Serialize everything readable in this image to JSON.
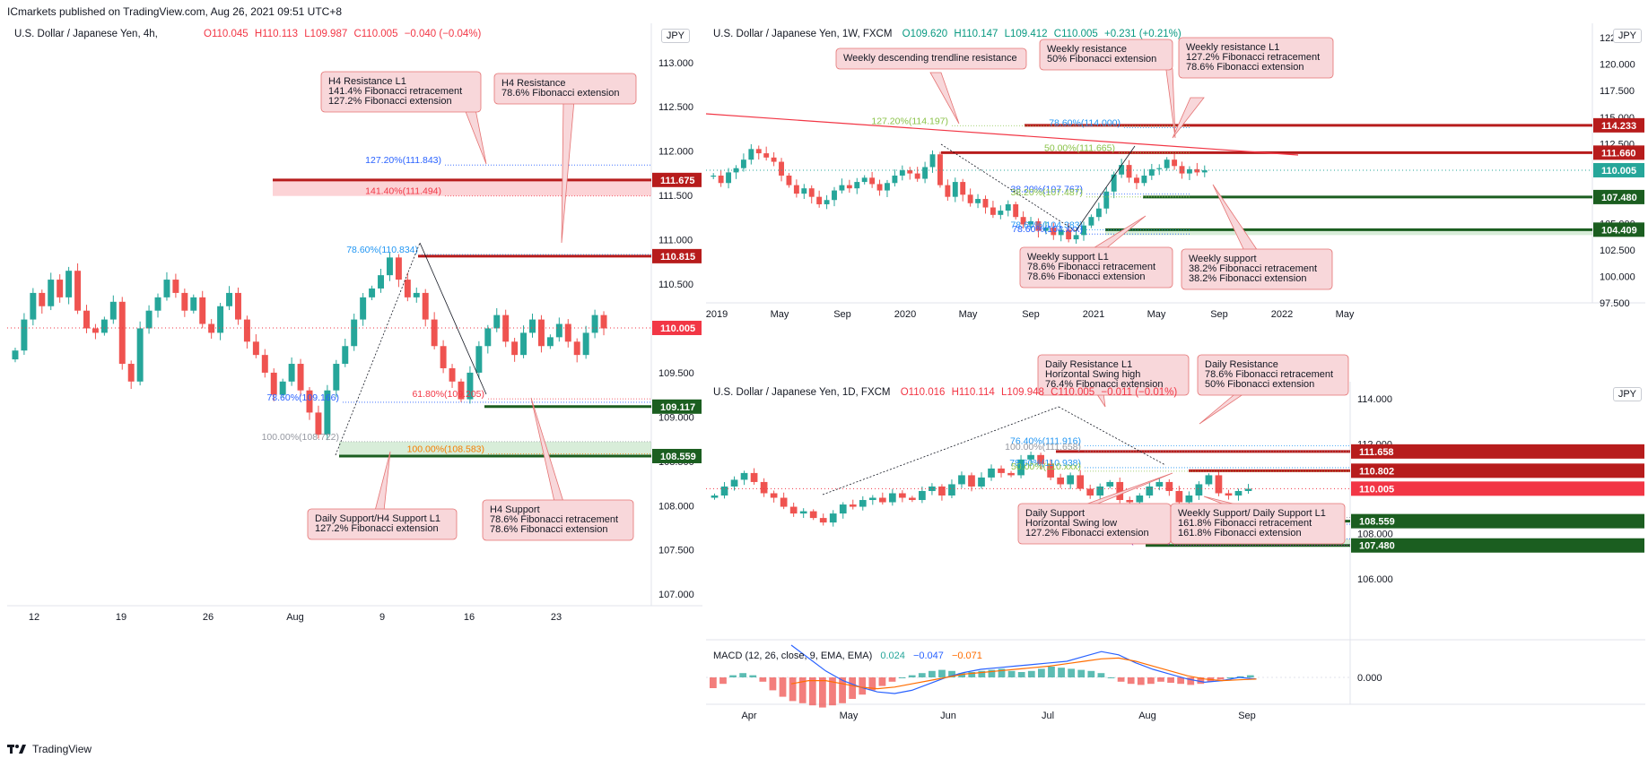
{
  "header": {
    "publisher_line": "ICmarkets published on TradingView.com, Aug 26, 2021 09:51 UTC+8"
  },
  "footer": {
    "brand": "TradingView"
  },
  "panels": {
    "h4": {
      "symbol": "U.S. Dollar / Japanese Yen, 4h,",
      "ohlc": {
        "o": "O110.045",
        "h": "H110.113",
        "l": "L109.987",
        "c": "C110.005",
        "chg": "−0.040 (−0.04%)"
      },
      "currency": "JPY",
      "last_price_tag": "110.005",
      "levels": [
        {
          "label": "111.675",
          "price": 111.675,
          "kind": "resistance"
        },
        {
          "label": "110.815",
          "price": 110.815,
          "kind": "resistance"
        },
        {
          "label": "109.117",
          "price": 109.117,
          "kind": "support"
        },
        {
          "label": "108.559",
          "price": 108.559,
          "kind": "support"
        }
      ],
      "fib_labels": [
        {
          "text": "127.20%(111.843)",
          "price": 111.843,
          "color": "#2962ff"
        },
        {
          "text": "141.40%(111.494)",
          "price": 111.494,
          "color": "#f23645"
        },
        {
          "text": "78.60%(110.834)",
          "price": 110.834,
          "color": "#2196f3"
        },
        {
          "text": "78.60%(109.166)",
          "price": 109.166,
          "color": "#2962ff"
        },
        {
          "text": "61.80%(109.205)",
          "price": 109.205,
          "color": "#f23645"
        },
        {
          "text": "100.00%(108.722)",
          "price": 108.722,
          "color": "#9598a1"
        },
        {
          "text": "100.00%(108.583)",
          "price": 108.583,
          "color": "#f57c00"
        }
      ],
      "callouts": [
        {
          "lines": [
            "H4 Resistance L1",
            "141.4% Fibonacci retracement",
            "127.2% Fibonacci extension"
          ]
        },
        {
          "lines": [
            "H4 Resistance",
            "78.6% Fibonacci extension"
          ]
        },
        {
          "lines": [
            "Daily Support/H4 Support L1",
            "127.2% Fibonacci extension"
          ]
        },
        {
          "lines": [
            "H4 Support",
            "78.6% Fibonacci retracement",
            "78.6% Fibonacci extension"
          ]
        }
      ],
      "y_ticks": [
        "113.000",
        "112.500",
        "112.000",
        "111.500",
        "111.000",
        "110.500",
        "110.000",
        "109.500",
        "109.000",
        "108.500",
        "108.000",
        "107.500",
        "107.000"
      ],
      "x_ticks": [
        "12",
        "19",
        "26",
        "Aug",
        "9",
        "16",
        "23"
      ]
    },
    "w1": {
      "symbol": "U.S. Dollar / Japanese Yen, 1W, FXCM",
      "ohlc": {
        "o": "O109.620",
        "h": "H110.147",
        "l": "L109.412",
        "c": "C110.005",
        "chg": "+0.231 (+0.21%)"
      },
      "currency": "JPY",
      "last_price_tag": "110.005",
      "levels": [
        {
          "label": "114.233",
          "price": 114.233,
          "kind": "resistance"
        },
        {
          "label": "111.660",
          "price": 111.66,
          "kind": "resistance"
        },
        {
          "label": "107.480",
          "price": 107.48,
          "kind": "support"
        },
        {
          "label": "104.409",
          "price": 104.409,
          "kind": "support"
        }
      ],
      "fib_labels": [
        {
          "text": "127.20%(114.197)",
          "price": 114.197,
          "color": "#8bc34a"
        },
        {
          "text": "78.60%(114.000)",
          "price": 114.0,
          "color": "#2196f3"
        },
        {
          "text": "50.00%(111.665)",
          "price": 111.665,
          "color": "#8bc34a"
        },
        {
          "text": "38.20%(107.767)",
          "price": 107.767,
          "color": "#2962ff"
        },
        {
          "text": "38.20%(107.487)",
          "price": 107.487,
          "color": "#8bc34a"
        },
        {
          "text": "78.60%(104.383)",
          "price": 104.383,
          "color": "#2196f3"
        },
        {
          "text": "78.60%(104.xxx)",
          "price": 104.0,
          "color": "#2962ff"
        }
      ],
      "callouts": [
        {
          "lines": [
            "Weekly descending trendline resistance"
          ]
        },
        {
          "lines": [
            "Weekly resistance",
            "50% Fibonacci extension"
          ]
        },
        {
          "lines": [
            "Weekly resistance L1",
            "127.2% Fibonacci retracement",
            "78.6% Fibonacci extension"
          ]
        },
        {
          "lines": [
            "Weekly support L1",
            "78.6% Fibonacci retracement",
            "78.6% Fibonacci extension"
          ]
        },
        {
          "lines": [
            "Weekly support",
            "38.2% Fibonacci retracement",
            "38.2% Fibonacci extension"
          ]
        }
      ],
      "y_ticks": [
        "122.500",
        "120.000",
        "117.500",
        "115.000",
        "112.500",
        "107.500",
        "105.000",
        "102.500",
        "100.000",
        "97.500"
      ],
      "x_ticks": [
        "2019",
        "May",
        "Sep",
        "2020",
        "May",
        "Sep",
        "2021",
        "May",
        "Sep",
        "2022",
        "May"
      ]
    },
    "d1": {
      "symbol": "U.S. Dollar / Japanese Yen, 1D, FXCM",
      "ohlc": {
        "o": "O110.016",
        "h": "H110.114",
        "l": "L109.948",
        "c": "C110.005",
        "chg": "−0.011 (−0.01%)"
      },
      "currency": "JPY",
      "last_price_tag": "110.005",
      "levels": [
        {
          "label": "111.658",
          "price": 111.658,
          "kind": "resistance"
        },
        {
          "label": "110.802",
          "price": 110.802,
          "kind": "resistance"
        },
        {
          "label": "108.559",
          "price": 108.559,
          "kind": "support"
        },
        {
          "label": "107.480",
          "price": 107.48,
          "kind": "support"
        }
      ],
      "fib_labels": [
        {
          "text": "76.40%(111.916)",
          "price": 111.916,
          "color": "#2196f3"
        },
        {
          "text": "100.00%(111.658)",
          "price": 111.658,
          "color": "#9598a1"
        },
        {
          "text": "78.60%(110.938)",
          "price": 110.938,
          "color": "#2196f3"
        },
        {
          "text": "50.00%(110.xxx)",
          "price": 110.78,
          "color": "#8bc34a"
        },
        {
          "text": "100.00%(108.722)",
          "price": 108.722,
          "color": "#9598a1"
        },
        {
          "text": "127.20%(108.422)",
          "price": 108.422,
          "color": "#2962ff"
        },
        {
          "text": "161.80%(107.775)",
          "price": 107.775,
          "color": "#2962ff"
        },
        {
          "text": "161.80%(107.487)",
          "price": 107.487,
          "color": "#9c27b0"
        }
      ],
      "callouts": [
        {
          "lines": [
            "Daily Resistance L1",
            "Horizontal Swing high",
            "76.4% Fibonacci extension"
          ]
        },
        {
          "lines": [
            "Daily Resistance",
            "78.6% Fibonacci retracement",
            "50% Fibonacci extension"
          ]
        },
        {
          "lines": [
            "Daily Support",
            "Horizontal Swing low",
            "127.2% Fibonacci extension"
          ]
        },
        {
          "lines": [
            "Weekly Support/ Daily Support L1",
            "161.8% Fibonacci retracement",
            "161.8% Fibonacci extension"
          ]
        }
      ],
      "y_ticks": [
        "114.000",
        "112.000",
        "108.000",
        "106.000"
      ],
      "x_ticks": [
        "Apr",
        "May",
        "Jun",
        "Jul",
        "Aug",
        "Sep"
      ],
      "macd": {
        "title": "MACD (12, 26, close, 9, EMA, EMA)",
        "hist": "0.024",
        "macd": "−0.047",
        "signal": "−0.071",
        "y_tick": "0.000"
      }
    }
  },
  "chart_data": [
    {
      "type": "candlestick",
      "title": "U.S. Dollar / Japanese Yen, 4h",
      "ylim": [
        106.85,
        113.2
      ],
      "series": [
        {
          "name": "USDJPY 4h close (approx.)",
          "values": [
            109.75,
            110.1,
            110.4,
            110.25,
            110.55,
            110.35,
            110.65,
            110.2,
            110.0,
            109.95,
            110.1,
            110.3,
            109.6,
            109.4,
            110.0,
            110.2,
            110.35,
            110.55,
            110.4,
            110.2,
            110.35,
            110.05,
            109.95,
            110.25,
            110.4,
            110.1,
            109.85,
            109.7,
            109.5,
            109.25,
            109.4,
            109.6,
            109.3,
            109.05,
            108.8,
            109.3,
            109.6,
            109.8,
            110.1,
            110.35,
            110.45,
            110.6,
            110.8,
            110.55,
            110.35,
            110.4,
            110.1,
            109.8,
            109.55,
            109.4,
            109.2,
            109.5,
            109.8,
            110.0,
            110.15,
            109.85,
            109.7,
            109.95,
            110.1,
            109.8,
            109.9,
            110.05,
            109.85,
            109.7,
            109.95,
            110.15,
            110.0
          ]
        }
      ]
    },
    {
      "type": "candlestick",
      "title": "U.S. Dollar / Japanese Yen, 1W",
      "ylim": [
        96,
        123.5
      ],
      "series": [
        {
          "name": "USDJPY weekly close (approx.)",
          "values": [
            109.5,
            108.8,
            109.8,
            110.2,
            111.0,
            112.0,
            111.6,
            111.2,
            110.8,
            109.5,
            108.6,
            107.8,
            108.3,
            107.5,
            106.8,
            107.2,
            108.1,
            108.6,
            108.3,
            108.9,
            109.3,
            108.7,
            108.1,
            108.8,
            109.5,
            110.0,
            109.7,
            109.2,
            110.3,
            111.5,
            108.6,
            107.5,
            108.9,
            107.7,
            106.9,
            107.3,
            106.5,
            105.8,
            106.2,
            106.8,
            105.6,
            104.9,
            105.2,
            104.3,
            104.6,
            103.9,
            104.4,
            103.5,
            103.9,
            104.8,
            105.6,
            106.4,
            108.0,
            109.6,
            110.5,
            109.3,
            108.8,
            109.5,
            110.1,
            110.2,
            111.0,
            110.4,
            109.7,
            110.1,
            109.8,
            110.0
          ]
        }
      ]
    },
    {
      "type": "candlestick",
      "title": "U.S. Dollar / Japanese Yen, 1D",
      "ylim": [
        104.8,
        114.6
      ],
      "series": [
        {
          "name": "USDJPY daily close (approx.)",
          "values": [
            109.7,
            110.1,
            110.4,
            110.7,
            110.3,
            109.8,
            109.6,
            109.2,
            108.9,
            109.0,
            108.7,
            108.5,
            108.9,
            109.3,
            109.2,
            109.5,
            109.6,
            109.4,
            109.8,
            109.6,
            109.5,
            109.9,
            110.1,
            109.7,
            110.2,
            110.6,
            110.1,
            110.5,
            110.9,
            110.7,
            110.6,
            111.3,
            111.5,
            111.1,
            110.5,
            110.2,
            110.6,
            110.0,
            109.7,
            110.1,
            110.3,
            109.5,
            109.4,
            109.7,
            110.1,
            110.3,
            109.9,
            109.4,
            109.7,
            110.2,
            110.6,
            109.8,
            109.7,
            109.9,
            110.0
          ]
        }
      ]
    }
  ]
}
